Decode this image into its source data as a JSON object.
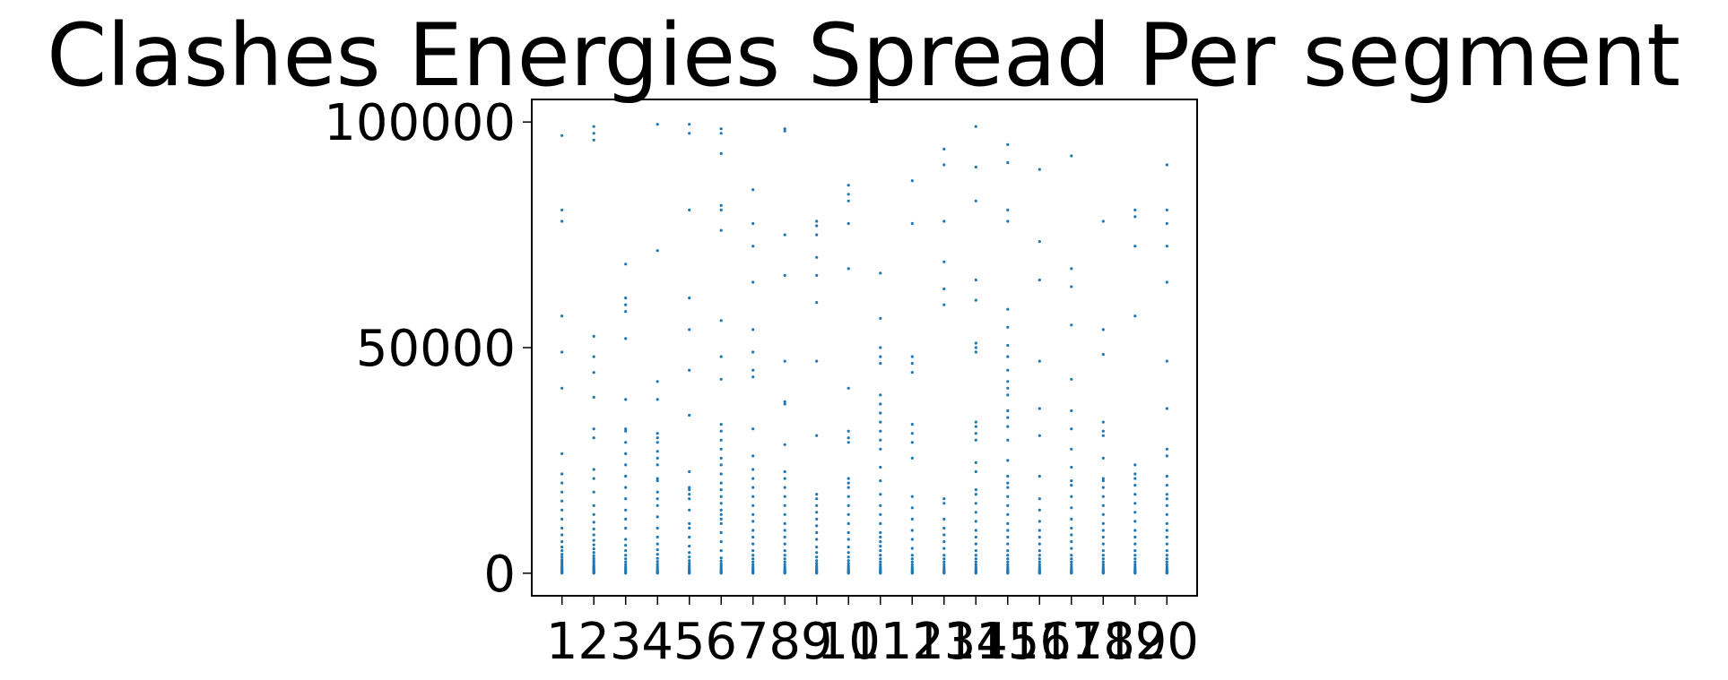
{
  "chart_data": {
    "type": "scatter",
    "title": "Clashes Energies Spread Per segment",
    "xlabel": "",
    "ylabel": "",
    "x_ticks": [
      "1",
      "2",
      "3",
      "4",
      "5",
      "6",
      "7",
      "8",
      "9",
      "10",
      "11",
      "12",
      "13",
      "14",
      "15",
      "16",
      "17",
      "18",
      "19",
      "20"
    ],
    "y_ticks": [
      0,
      50000,
      100000
    ],
    "xlim": [
      0.05,
      20.95
    ],
    "ylim": [
      -5000,
      105000
    ],
    "grid": false,
    "marker_color": "#1f77b4",
    "series": [
      {
        "values": [
          {
            "x": 1,
            "y": [
              0,
              150,
              300,
              500,
              700,
              900,
              1100,
              1400,
              1700,
              2100,
              2500,
              3000,
              3600,
              4200,
              5000,
              5800,
              7000,
              8500,
              10000,
              12000,
              14000,
              16000,
              18000,
              20000,
              22000,
              26500,
              41000,
              49000,
              57000,
              78000,
              80500,
              97000
            ]
          },
          {
            "x": 2,
            "y": [
              0,
              100,
              200,
              300,
              400,
              500,
              650,
              800,
              1000,
              1200,
              1400,
              1700,
              2000,
              2400,
              2800,
              3300,
              3900,
              4600,
              5400,
              6300,
              7300,
              8500,
              9800,
              11300,
              13000,
              15000,
              18000,
              21000,
              23000,
              30000,
              32000,
              39000,
              44500,
              48000,
              52500,
              96000,
              97500,
              99000
            ]
          },
          {
            "x": 3,
            "y": [
              0,
              200,
              400,
              700,
              1000,
              1400,
              1900,
              2500,
              3200,
              4000,
              5000,
              6200,
              7500,
              10000,
              12000,
              14000,
              16500,
              19000,
              21500,
              24000,
              26500,
              29000,
              31500,
              32000,
              38500,
              52000,
              58000,
              59500,
              61000,
              68500
            ]
          },
          {
            "x": 4,
            "y": [
              0,
              150,
              300,
              500,
              800,
              1100,
              1500,
              2000,
              2600,
              3300,
              4200,
              5200,
              6500,
              8000,
              10000,
              12500,
              15000,
              16500,
              18000,
              20500,
              21000,
              24000,
              25500,
              27000,
              29000,
              30000,
              31000,
              38500,
              42500,
              71500,
              99500
            ]
          },
          {
            "x": 5,
            "y": [
              0,
              150,
              300,
              500,
              700,
              1000,
              1300,
              1700,
              2200,
              2800,
              3600,
              4600,
              6000,
              8000,
              10000,
              11000,
              14000,
              16500,
              17500,
              18500,
              19000,
              22500,
              35000,
              45000,
              54000,
              61000,
              80500,
              97500,
              99500
            ]
          },
          {
            "x": 6,
            "y": [
              0,
              200,
              400,
              600,
              900,
              1200,
              1600,
              2100,
              2700,
              3400,
              5000,
              7000,
              9000,
              11000,
              12000,
              13000,
              14000,
              15500,
              17000,
              18500,
              20000,
              22000,
              24000,
              25500,
              27500,
              29500,
              31500,
              33000,
              43000,
              48000,
              56000,
              76000,
              80500,
              81500,
              93000,
              97500,
              98500
            ]
          },
          {
            "x": 7,
            "y": [
              0,
              150,
              300,
              500,
              700,
              1000,
              1400,
              1900,
              2500,
              3200,
              4000,
              5000,
              6500,
              8000,
              9500,
              11500,
              13000,
              15000,
              17000,
              19000,
              21000,
              23000,
              26000,
              32000,
              43500,
              45000,
              49000,
              54000,
              64500,
              72500,
              77500,
              85000
            ]
          },
          {
            "x": 8,
            "y": [
              0,
              150,
              300,
              500,
              700,
              1000,
              1400,
              1900,
              2500,
              3200,
              4000,
              5000,
              6500,
              8000,
              9500,
              11000,
              13000,
              15000,
              17000,
              19000,
              21000,
              22500,
              28500,
              37500,
              38000,
              47000,
              66000,
              75000,
              98000,
              98500
            ]
          },
          {
            "x": 9,
            "y": [
              0,
              150,
              300,
              500,
              700,
              1000,
              1300,
              1700,
              2200,
              2800,
              3600,
              4600,
              5800,
              7500,
              9000,
              10500,
              12000,
              13500,
              15000,
              16500,
              17500,
              30500,
              47000,
              60000,
              66000,
              70000,
              75000,
              77000,
              78000
            ]
          },
          {
            "x": 10,
            "y": [
              0,
              150,
              300,
              500,
              700,
              1000,
              1300,
              1700,
              2200,
              2800,
              3600,
              4600,
              5800,
              7500,
              9000,
              11000,
              13000,
              15000,
              17000,
              19000,
              20000,
              21000,
              29000,
              30000,
              31500,
              41000,
              67500,
              77500,
              82500,
              84000,
              86000
            ]
          },
          {
            "x": 11,
            "y": [
              0,
              150,
              300,
              500,
              700,
              1000,
              1400,
              1900,
              2500,
              3200,
              4000,
              5000,
              6000,
              7000,
              8000,
              9000,
              11000,
              13000,
              15000,
              17500,
              20500,
              23500,
              27500,
              29500,
              31500,
              33500,
              35500,
              37500,
              39500,
              46500,
              48000,
              50000,
              56500,
              66500
            ]
          },
          {
            "x": 12,
            "y": [
              0,
              150,
              300,
              500,
              700,
              1000,
              1400,
              1900,
              2500,
              3200,
              4000,
              5500,
              7500,
              9500,
              12000,
              14500,
              17000,
              25500,
              29000,
              31000,
              33000,
              44500,
              46500,
              48000,
              77500,
              87000
            ]
          },
          {
            "x": 13,
            "y": [
              0,
              150,
              300,
              500,
              700,
              1000,
              1400,
              1900,
              2500,
              3200,
              4000,
              5500,
              7000,
              8500,
              10000,
              12000,
              15500,
              16500,
              59500,
              63000,
              69000,
              78000,
              90500,
              94000
            ]
          },
          {
            "x": 14,
            "y": [
              0,
              150,
              300,
              500,
              700,
              1000,
              1400,
              1900,
              2500,
              3200,
              4000,
              5000,
              6500,
              8000,
              9500,
              11500,
              13500,
              15500,
              17500,
              18500,
              22500,
              24500,
              29500,
              31000,
              32500,
              33500,
              49000,
              50000,
              51000,
              60500,
              65000,
              82500,
              90000,
              99000
            ]
          },
          {
            "x": 15,
            "y": [
              0,
              150,
              300,
              500,
              700,
              1000,
              1400,
              1900,
              2500,
              3200,
              4000,
              5000,
              6500,
              8000,
              9500,
              11000,
              13000,
              15000,
              17000,
              19000,
              20000,
              21500,
              25000,
              29500,
              32500,
              34500,
              36000,
              39500,
              41000,
              42500,
              45000,
              48000,
              50500,
              54500,
              58500,
              78000,
              80500,
              91000,
              95000
            ]
          },
          {
            "x": 16,
            "y": [
              0,
              150,
              300,
              500,
              700,
              1000,
              1400,
              1900,
              2500,
              3200,
              4000,
              5000,
              6500,
              8000,
              9500,
              11500,
              14000,
              16500,
              21500,
              30500,
              36500,
              47000,
              65000,
              73500,
              89500
            ]
          },
          {
            "x": 17,
            "y": [
              0,
              150,
              300,
              500,
              700,
              1000,
              1400,
              1900,
              2500,
              3200,
              4000,
              5500,
              7000,
              8500,
              10000,
              12000,
              14500,
              17000,
              19500,
              20500,
              23500,
              27500,
              32000,
              36000,
              43000,
              55000,
              63500,
              67500,
              92500
            ]
          },
          {
            "x": 18,
            "y": [
              0,
              150,
              300,
              500,
              700,
              1000,
              1400,
              1900,
              2500,
              3200,
              4000,
              5000,
              6500,
              8000,
              9500,
              11000,
              13000,
              15000,
              17000,
              19000,
              20500,
              21000,
              25500,
              30500,
              31500,
              33500,
              48500,
              54000,
              78000
            ]
          },
          {
            "x": 19,
            "y": [
              0,
              150,
              300,
              500,
              700,
              1000,
              1400,
              1900,
              2500,
              3200,
              4000,
              5000,
              6500,
              8000,
              9500,
              11500,
              13500,
              15500,
              17500,
              19500,
              21000,
              22000,
              24000,
              57000,
              72500,
              79000,
              80500
            ]
          },
          {
            "x": 20,
            "y": [
              0,
              150,
              300,
              500,
              700,
              1000,
              1400,
              1900,
              2500,
              3200,
              4000,
              5000,
              6500,
              8000,
              9500,
              11000,
              13000,
              15000,
              16500,
              17500,
              19500,
              21500,
              26000,
              27500,
              36500,
              47000,
              64500,
              72500,
              77500,
              80500,
              90500
            ]
          }
        ]
      }
    ]
  }
}
